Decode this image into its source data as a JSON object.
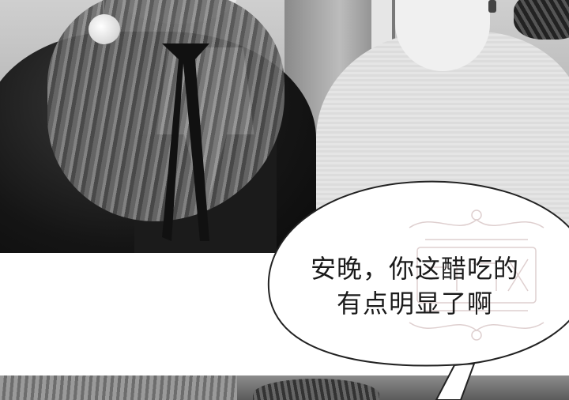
{
  "dialogue": {
    "line1": "安晚，你这醋吃的",
    "line2": "有点明显了啊"
  },
  "icons": {
    "speech_bubble": "speech-bubble-icon",
    "watermark": "ornamental-watermark-icon"
  },
  "colors": {
    "bubble_fill": "#ffffff",
    "bubble_stroke": "#222222",
    "text": "#1a1a1a",
    "watermark": "#d9c7c7"
  }
}
